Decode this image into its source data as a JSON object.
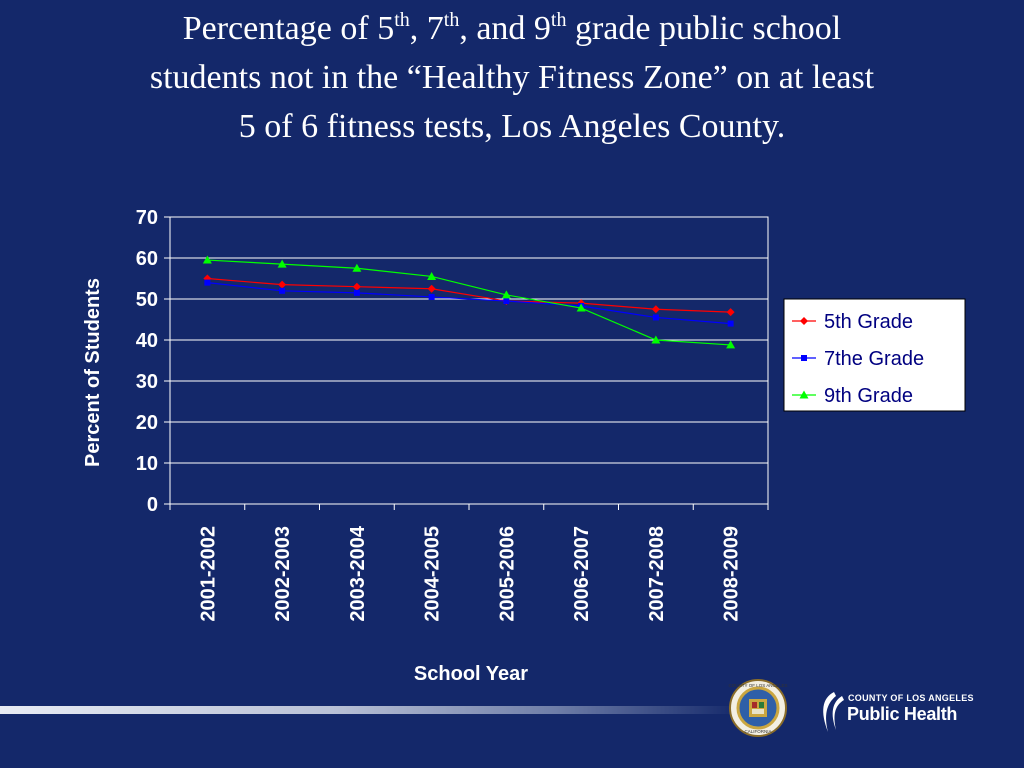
{
  "title": {
    "line1_part1": "Percentage of 5",
    "sup1": "th",
    "line1_part2": ", 7",
    "sup2": "th",
    "line1_part3": ", and 9",
    "sup3": "th",
    "line1_part4": " grade public school",
    "line2": "students not in the “Healthy Fitness Zone” on at least",
    "line3": "5 of 6 fitness tests, Los Angeles County."
  },
  "chart_data": {
    "type": "line",
    "title": "",
    "xlabel": "School Year",
    "ylabel": "Percent of Students",
    "categories": [
      "2001-2002",
      "2002-2003",
      "2003-2004",
      "2004-2005",
      "2005-2006",
      "2006-2007",
      "2007-2008",
      "2008-2009"
    ],
    "ylim": [
      0,
      70
    ],
    "yticks": [
      0,
      10,
      20,
      30,
      40,
      50,
      60,
      70
    ],
    "grid": true,
    "legend_position": "right",
    "series": [
      {
        "name": "5th Grade",
        "color": "#ff0000",
        "marker": "diamond",
        "values": [
          55,
          53.5,
          53,
          52.5,
          49.5,
          49,
          47.5,
          46.8
        ]
      },
      {
        "name": "7the Grade",
        "color": "#0000ff",
        "marker": "square",
        "values": [
          54,
          52,
          51.5,
          50.5,
          49.5,
          48.3,
          45.5,
          44
        ]
      },
      {
        "name": "9th Grade",
        "color": "#00ff00",
        "marker": "triangle",
        "values": [
          59.5,
          58.5,
          57.5,
          55.5,
          51,
          47.8,
          40,
          38.8
        ]
      }
    ]
  },
  "logos": {
    "seal_text": "COUNTY OF LOS ANGELES",
    "seal_bottom": "CALIFORNIA",
    "ph_county": "COUNTY OF LOS ANGELES",
    "ph_name": "Public Health"
  },
  "colors": {
    "background": "#14286a",
    "plot_background": "#14286a",
    "gridline": "#ffffff"
  }
}
